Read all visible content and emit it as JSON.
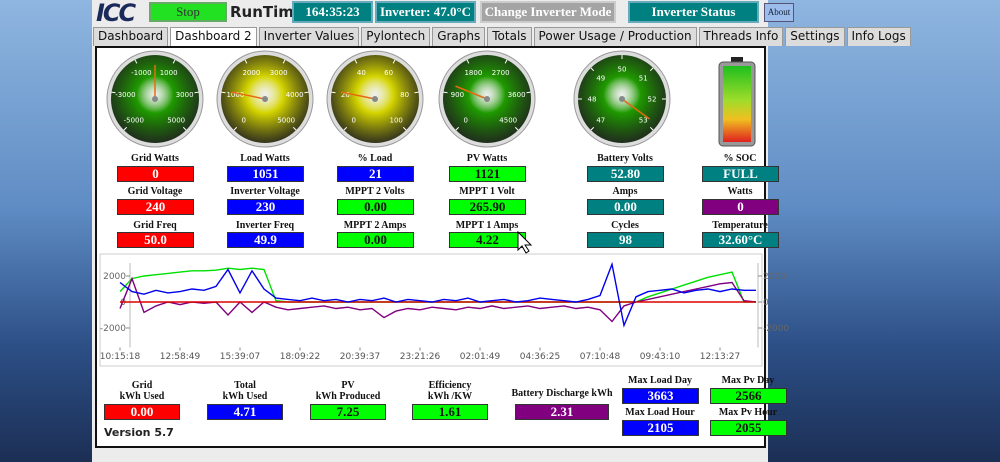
{
  "header": {
    "logo": "ICC",
    "stop": "Stop",
    "runtime_label": "RunTime",
    "runtime": "164:35:23",
    "inverter_temp": "Inverter: 47.0°C",
    "change_mode": "Change Inverter Mode",
    "status": "Inverter Status",
    "about": "About"
  },
  "tabs": [
    "Dashboard",
    "Dashboard 2",
    "Inverter Values",
    "Pylontech",
    "Graphs",
    "Totals",
    "Power Usage / Production",
    "Threads Info",
    "Settings",
    "Info Logs"
  ],
  "active_tab": 1,
  "gauges": [
    {
      "ticks": [
        -5000,
        -3000,
        -1000,
        1000,
        3000,
        5000
      ],
      "value": 0,
      "color": "#1f9a00"
    },
    {
      "ticks": [
        0,
        1000,
        2000,
        3000,
        4000,
        5000
      ],
      "value": 1051,
      "color": "#d4d400"
    },
    {
      "ticks": [
        0,
        20,
        40,
        60,
        80,
        100
      ],
      "value": 21,
      "color": "#d4d400"
    },
    {
      "ticks": [
        0,
        900,
        1800,
        2700,
        3600,
        4500
      ],
      "value": 1121,
      "color": "#1f9a00"
    },
    {
      "ticks": [
        47,
        48,
        49,
        50,
        51,
        52,
        53
      ],
      "value": 52.8,
      "color": "#1f9a00"
    }
  ],
  "readouts": [
    [
      {
        "label": "Grid Watts",
        "value": "0",
        "color": "#ff0000"
      },
      {
        "label": "Grid Voltage",
        "value": "240",
        "color": "#ff0000"
      },
      {
        "label": "Grid Freq",
        "value": "50.0",
        "color": "#ff0000"
      }
    ],
    [
      {
        "label": "Load Watts",
        "value": "1051",
        "color": "#0000ff"
      },
      {
        "label": "Inverter Voltage",
        "value": "230",
        "color": "#0000ff"
      },
      {
        "label": "Inverter Freq",
        "value": "49.9",
        "color": "#0000ff"
      }
    ],
    [
      {
        "label": "% Load",
        "value": "21",
        "color": "#0000ff"
      },
      {
        "label": "MPPT 2 Volts",
        "value": "0.00",
        "color": "#00ff00"
      },
      {
        "label": "MPPT 2 Amps",
        "value": "0.00",
        "color": "#00ff00"
      }
    ],
    [
      {
        "label": "PV Watts",
        "value": "1121",
        "color": "#00ff00"
      },
      {
        "label": "MPPT 1 Volt",
        "value": "265.90",
        "color": "#00ff00"
      },
      {
        "label": "MPPT 1 Amps",
        "value": "4.22",
        "color": "#00ff00"
      }
    ],
    [
      {
        "label": "Battery Volts",
        "value": "52.80",
        "color": "#008080"
      },
      {
        "label": "Amps",
        "value": "0.00",
        "color": "#008080"
      },
      {
        "label": "Cycles",
        "value": "98",
        "color": "#008080"
      }
    ],
    [
      {
        "label": "% SOC",
        "value": "FULL",
        "color": "#008080"
      },
      {
        "label": "Watts",
        "value": "0",
        "color": "#800080"
      },
      {
        "label": "Temperature",
        "value": "32.60°C",
        "color": "#008080"
      }
    ]
  ],
  "chart_data": {
    "type": "line",
    "categories": [
      "10:15:18",
      null,
      null,
      null,
      null,
      "12:58:49",
      null,
      null,
      null,
      null,
      "15:39:07",
      null,
      null,
      null,
      null,
      "18:09:22",
      null,
      null,
      null,
      null,
      "20:39:37",
      null,
      null,
      null,
      null,
      "23:21:26",
      null,
      null,
      null,
      null,
      "02:01:49",
      null,
      null,
      null,
      null,
      "04:36:25",
      null,
      null,
      null,
      null,
      "07:10:48",
      null,
      null,
      null,
      null,
      "09:43:10",
      null,
      null,
      null,
      null,
      "12:13:27",
      null,
      null,
      null
    ],
    "ylim": [
      -3500,
      3000
    ],
    "yticks": [
      -2000,
      0,
      2000
    ],
    "series": [
      {
        "color": "#00e000",
        "values": [
          800,
          1800,
          2000,
          2100,
          2200,
          2300,
          2400,
          2400,
          2450,
          2600,
          2500,
          2600,
          2500,
          100,
          0,
          0,
          0,
          0,
          0,
          0,
          0,
          0,
          0,
          0,
          0,
          0,
          0,
          0,
          0,
          0,
          0,
          0,
          0,
          0,
          0,
          0,
          0,
          0,
          0,
          0,
          0,
          0,
          0,
          0,
          400,
          700,
          1000,
          1300,
          1600,
          1900,
          2100,
          2300,
          0,
          0
        ]
      },
      {
        "color": "#800080",
        "values": [
          -500,
          1800,
          -800,
          -300,
          0,
          -200,
          0,
          -100,
          0,
          -1000,
          0,
          -800,
          0,
          -400,
          -600,
          -500,
          -400,
          -300,
          -500,
          -400,
          -600,
          -500,
          -1200,
          -700,
          -500,
          -600,
          -400,
          -500,
          -600,
          -400,
          -500,
          -300,
          -500,
          -400,
          -300,
          -500,
          -400,
          -300,
          -500,
          -400,
          -600,
          -1500,
          -300,
          0,
          200,
          400,
          600,
          800,
          1000,
          1200,
          1400,
          1500,
          100,
          0
        ]
      },
      {
        "color": "#dd0000",
        "values": [
          0,
          0,
          0,
          0,
          0,
          0,
          0,
          0,
          0,
          0,
          0,
          0,
          0,
          0,
          0,
          0,
          0,
          0,
          0,
          0,
          0,
          0,
          0,
          0,
          0,
          0,
          0,
          0,
          0,
          0,
          0,
          0,
          0,
          0,
          0,
          0,
          0,
          0,
          0,
          0,
          0,
          0,
          0,
          0,
          0,
          0,
          0,
          0,
          0,
          0,
          0,
          0,
          0,
          0
        ]
      },
      {
        "color": "#0000ee",
        "values": [
          1500,
          800,
          600,
          900,
          700,
          800,
          1000,
          900,
          1200,
          2500,
          700,
          2400,
          1000,
          300,
          200,
          100,
          300,
          100,
          200,
          0,
          200,
          100,
          300,
          0,
          200,
          100,
          0,
          200,
          100,
          300,
          0,
          100,
          200,
          0,
          100,
          300,
          200,
          100,
          0,
          200,
          500,
          2900,
          -1800,
          400,
          800,
          900,
          1000,
          700,
          900,
          1000,
          800,
          1000,
          900,
          900
        ]
      }
    ]
  },
  "totals": [
    {
      "label": [
        "Grid",
        "kWh Used"
      ],
      "value": "0.00",
      "color": "#ff0000"
    },
    {
      "label": [
        "Total",
        "kWh Used"
      ],
      "value": "4.71",
      "color": "#0000ff"
    },
    {
      "label": [
        "PV",
        "kWh Produced"
      ],
      "value": "7.25",
      "color": "#00ff00"
    },
    {
      "label": [
        "Efficiency",
        "kWh /KW"
      ],
      "value": "1.61",
      "color": "#00ff00"
    },
    {
      "label": [
        "Battery Discharge kWh"
      ],
      "value": "2.31",
      "color": "#800080"
    }
  ],
  "max": [
    {
      "label": "Max Load Day",
      "value": "3663",
      "color": "#0000ff"
    },
    {
      "label": "Max Pv Day",
      "value": "2566",
      "color": "#00ff00"
    },
    {
      "label": "Max Load Hour",
      "value": "2105",
      "color": "#0000ff"
    },
    {
      "label": "Max Pv Hour",
      "value": "2055",
      "color": "#00ff00"
    }
  ],
  "version": "Version 5.7"
}
